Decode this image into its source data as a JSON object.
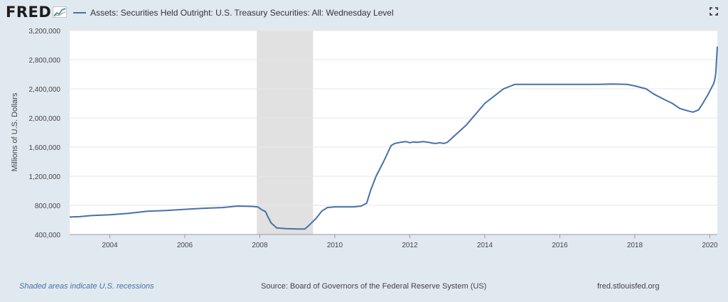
{
  "brand": {
    "logo_text": "FRED",
    "logo_icon": "fred-sparkline-icon"
  },
  "header": {
    "legend_label": "Assets: Securities Held Outright: U.S. Treasury Securities: All: Wednesday Level",
    "fullscreen_icon": "fullscreen-icon"
  },
  "colors": {
    "series": "#4572a7",
    "recession": "#e1e1e1",
    "background": "#e1e9f0",
    "plot_bg": "#ffffff"
  },
  "chart_data": {
    "type": "line",
    "title": "",
    "xlabel": "",
    "ylabel": "Millions of U.S. Dollars",
    "xlim": [
      2002.93,
      2020.2
    ],
    "ylim": [
      400000,
      3200000
    ],
    "y_ticks": [
      {
        "value": 400000,
        "label": "400,000"
      },
      {
        "value": 800000,
        "label": "800,000"
      },
      {
        "value": 1200000,
        "label": "1,200,000"
      },
      {
        "value": 1600000,
        "label": "1,600,000"
      },
      {
        "value": 2000000,
        "label": "2,000,000"
      },
      {
        "value": 2400000,
        "label": "2,400,000"
      },
      {
        "value": 2800000,
        "label": "2,800,000"
      },
      {
        "value": 3200000,
        "label": "3,200,000"
      }
    ],
    "x_ticks": [
      {
        "value": 2004,
        "label": "2004"
      },
      {
        "value": 2006,
        "label": "2006"
      },
      {
        "value": 2008,
        "label": "2008"
      },
      {
        "value": 2010,
        "label": "2010"
      },
      {
        "value": 2012,
        "label": "2012"
      },
      {
        "value": 2014,
        "label": "2014"
      },
      {
        "value": 2016,
        "label": "2016"
      },
      {
        "value": 2018,
        "label": "2018"
      },
      {
        "value": 2020,
        "label": "2020"
      }
    ],
    "grid": "horizontal",
    "legend": "top-left",
    "recessions": [
      {
        "start": 2007.92,
        "end": 2009.42
      }
    ],
    "series": [
      {
        "name": "Assets: Securities Held Outright: U.S. Treasury Securities: All: Wednesday Level",
        "x": [
          2002.93,
          2003.2,
          2003.5,
          2004.0,
          2004.5,
          2005.0,
          2005.5,
          2006.0,
          2006.5,
          2007.0,
          2007.4,
          2007.8,
          2007.95,
          2008.05,
          2008.15,
          2008.22,
          2008.3,
          2008.45,
          2008.7,
          2009.0,
          2009.2,
          2009.3,
          2009.5,
          2009.65,
          2009.8,
          2010.0,
          2010.5,
          2010.7,
          2010.85,
          2010.95,
          2011.1,
          2011.3,
          2011.5,
          2011.6,
          2011.75,
          2011.9,
          2012.0,
          2012.1,
          2012.2,
          2012.35,
          2012.5,
          2012.6,
          2012.7,
          2012.8,
          2012.9,
          2013.0,
          2013.5,
          2014.0,
          2014.5,
          2014.8,
          2015.0,
          2016.0,
          2017.0,
          2017.4,
          2017.8,
          2018.0,
          2018.3,
          2018.5,
          2018.8,
          2019.0,
          2019.2,
          2019.4,
          2019.55,
          2019.7,
          2019.8,
          2019.95,
          2020.05,
          2020.1,
          2020.13,
          2020.16,
          2020.18,
          2020.2
        ],
        "values": [
          640000,
          645000,
          660000,
          670000,
          690000,
          720000,
          730000,
          745000,
          760000,
          770000,
          790000,
          785000,
          778000,
          740000,
          715000,
          640000,
          560000,
          490000,
          480000,
          475000,
          475000,
          520000,
          620000,
          720000,
          770000,
          780000,
          780000,
          790000,
          830000,
          1000000,
          1200000,
          1400000,
          1620000,
          1650000,
          1665000,
          1675000,
          1660000,
          1670000,
          1665000,
          1675000,
          1665000,
          1655000,
          1650000,
          1660000,
          1650000,
          1665000,
          1900000,
          2200000,
          2400000,
          2460000,
          2460000,
          2460000,
          2460000,
          2465000,
          2460000,
          2440000,
          2400000,
          2330000,
          2250000,
          2200000,
          2130000,
          2100000,
          2080000,
          2110000,
          2190000,
          2320000,
          2420000,
          2470000,
          2520000,
          2620000,
          2800000,
          2980000
        ]
      }
    ]
  },
  "footer": {
    "recession_note": "Shaded areas indicate U.S. recessions",
    "source": "Source: Board of Governors of the Federal Reserve System (US)",
    "site": "fred.stlouisfed.org"
  }
}
